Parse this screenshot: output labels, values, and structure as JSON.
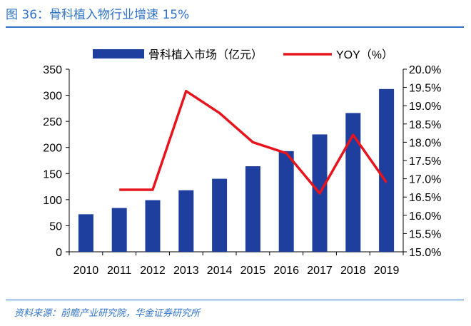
{
  "figure": {
    "title": "图 36：骨科植入物行业增速 15%",
    "source": "资料来源：前瞻产业研究院，华金证券研究所"
  },
  "colors": {
    "bar": "#1f3f9e",
    "line": "#e8141d",
    "title": "#2f73c9",
    "axis": "#000000"
  },
  "chart_data": {
    "type": "bar",
    "categories": [
      "2010",
      "2011",
      "2012",
      "2013",
      "2014",
      "2015",
      "2016",
      "2017",
      "2018",
      "2019"
    ],
    "series": [
      {
        "name": "骨科植入市场（亿元）",
        "type": "bar",
        "axis": "left",
        "values": [
          72,
          84,
          99,
          118,
          140,
          164,
          193,
          225,
          266,
          312
        ]
      },
      {
        "name": "YOY（%）",
        "type": "line",
        "axis": "right",
        "values": [
          null,
          16.7,
          16.7,
          19.4,
          18.8,
          18.0,
          17.7,
          16.6,
          18.2,
          16.9
        ]
      }
    ],
    "y_left": {
      "min": 0,
      "max": 350,
      "ticks": [
        "0",
        "50",
        "100",
        "150",
        "200",
        "250",
        "300",
        "350"
      ],
      "tick_values": [
        0,
        50,
        100,
        150,
        200,
        250,
        300,
        350
      ]
    },
    "y_right": {
      "min": 15.0,
      "max": 20.0,
      "ticks": [
        "15.0%",
        "15.5%",
        "16.0%",
        "16.5%",
        "17.0%",
        "17.5%",
        "18.0%",
        "18.5%",
        "19.0%",
        "19.5%",
        "20.0%"
      ],
      "tick_values": [
        15.0,
        15.5,
        16.0,
        16.5,
        17.0,
        17.5,
        18.0,
        18.5,
        19.0,
        19.5,
        20.0
      ]
    },
    "legend_position": "top",
    "grid": false
  }
}
